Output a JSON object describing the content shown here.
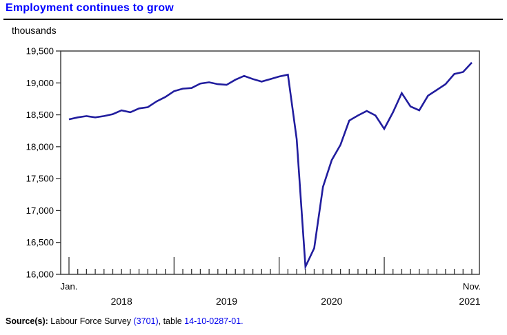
{
  "page": {
    "title": "Employment continues to grow",
    "unit_label": "thousands",
    "source": {
      "prefix": "Source(s):",
      "survey_text": " Labour Force Survey ",
      "survey_link": "(3701)",
      "between_text": ", table ",
      "table_link": "14-10-0287-01."
    }
  },
  "chart_data": {
    "type": "line",
    "title": "Employment continues to grow",
    "ylabel": "thousands",
    "grid": false,
    "legend": "none",
    "line_color": "#211d9e",
    "ylim": [
      16000,
      19500
    ],
    "ytick_step": 500,
    "ytick_labels": [
      "16,000",
      "16,500",
      "17,000",
      "17,500",
      "18,000",
      "18,500",
      "19,000",
      "19,500"
    ],
    "x_first_label": "Jan.",
    "x_last_label": "Nov.",
    "year_labels": [
      "2018",
      "2019",
      "2020",
      "2021"
    ],
    "x": [
      "2018-01",
      "2018-02",
      "2018-03",
      "2018-04",
      "2018-05",
      "2018-06",
      "2018-07",
      "2018-08",
      "2018-09",
      "2018-10",
      "2018-11",
      "2018-12",
      "2019-01",
      "2019-02",
      "2019-03",
      "2019-04",
      "2019-05",
      "2019-06",
      "2019-07",
      "2019-08",
      "2019-09",
      "2019-10",
      "2019-11",
      "2019-12",
      "2020-01",
      "2020-02",
      "2020-03",
      "2020-04",
      "2020-05",
      "2020-06",
      "2020-07",
      "2020-08",
      "2020-09",
      "2020-10",
      "2020-11",
      "2020-12",
      "2021-01",
      "2021-02",
      "2021-03",
      "2021-04",
      "2021-05",
      "2021-06",
      "2021-07",
      "2021-08",
      "2021-09",
      "2021-10",
      "2021-11"
    ],
    "values": [
      18430,
      18460,
      18480,
      18460,
      18480,
      18510,
      18570,
      18540,
      18600,
      18620,
      18710,
      18780,
      18870,
      18910,
      18920,
      18990,
      19010,
      18980,
      18970,
      19050,
      19110,
      19060,
      19020,
      19060,
      19100,
      19130,
      18120,
      16120,
      16410,
      17370,
      17790,
      18030,
      18410,
      18490,
      18560,
      18490,
      18280,
      18540,
      18840,
      18630,
      18570,
      18800,
      18890,
      18980,
      19140,
      19170,
      19320
    ]
  }
}
